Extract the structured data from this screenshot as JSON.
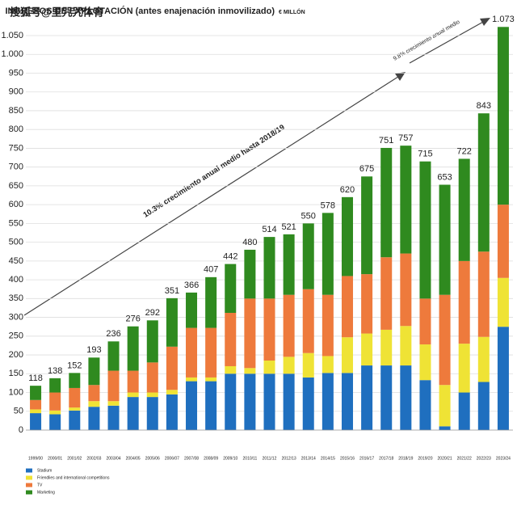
{
  "chart_data": {
    "type": "stacked-bar",
    "watermark": "搜狐号@里咒咒体育",
    "title": "INGRESOS DE EXPLOTACIÓN (antes enajenación inmovilizado)",
    "subtitle": "€ MILLÓN",
    "annotations": [
      "10.3% crecimiento anual medio hasta 2018/19",
      "9.8% crecimiento anual medio"
    ],
    "categories": [
      "1999/00",
      "2000/01",
      "2001/02",
      "2002/03",
      "2003/04",
      "2004/05",
      "2005/06",
      "2006/07",
      "2007/08",
      "2008/09",
      "2009/10",
      "2010/11",
      "2011/12",
      "2012/13",
      "2013/14",
      "2014/15",
      "2015/16",
      "2016/17",
      "2017/18",
      "2018/19",
      "2019/20",
      "2020/21",
      "2021/22",
      "2022/23",
      "2023/24"
    ],
    "series": [
      {
        "name": "Stadium",
        "color": "#1f6fbf",
        "values": [
          45,
          42,
          52,
          62,
          65,
          88,
          88,
          95,
          130,
          130,
          150,
          150,
          150,
          150,
          140,
          152,
          152,
          172,
          172,
          172,
          133,
          10,
          100,
          128,
          275
        ]
      },
      {
        "name": "Friendlies and international competitions",
        "color": "#efe335",
        "values": [
          10,
          10,
          8,
          15,
          12,
          12,
          12,
          12,
          10,
          10,
          20,
          15,
          35,
          45,
          65,
          45,
          95,
          85,
          95,
          105,
          95,
          110,
          130,
          120,
          130
        ]
      },
      {
        "name": "TV",
        "color": "#ee7a3c",
        "values": [
          25,
          48,
          52,
          43,
          81,
          58,
          80,
          115,
          132,
          132,
          142,
          185,
          165,
          165,
          170,
          163,
          163,
          158,
          193,
          193,
          122,
          240,
          220,
          227,
          195
        ]
      },
      {
        "name": "Marketing",
        "color": "#2f8a1f",
        "values": [
          38,
          38,
          40,
          73,
          78,
          118,
          112,
          129,
          94,
          135,
          130,
          130,
          164,
          161,
          175,
          218,
          210,
          260,
          291,
          287,
          365,
          293,
          272,
          368,
          473
        ]
      }
    ],
    "totals": {
      "values": [
        118,
        138,
        152,
        193,
        236,
        276,
        292,
        351,
        366,
        407,
        442,
        480,
        514,
        521,
        550,
        578,
        620,
        675,
        751,
        757,
        715,
        653,
        722,
        843,
        1073
      ],
      "value_labels": [
        "118",
        "138",
        "152",
        "193",
        "236",
        "276",
        "292",
        "351",
        "366",
        "407",
        "442",
        "480",
        "514",
        "521",
        "550",
        "578",
        "620",
        "675",
        "751",
        "757",
        "715",
        "653",
        "722",
        "843",
        "1.073"
      ]
    },
    "ylim": [
      0,
      1050
    ],
    "yticks": [
      0,
      50,
      100,
      150,
      200,
      250,
      300,
      350,
      400,
      450,
      500,
      550,
      600,
      650,
      700,
      750,
      800,
      850,
      900,
      950,
      {
        "value": 1000,
        "label": "1.000"
      },
      {
        "value": 1050,
        "label": "1.050"
      }
    ],
    "grid": true
  }
}
